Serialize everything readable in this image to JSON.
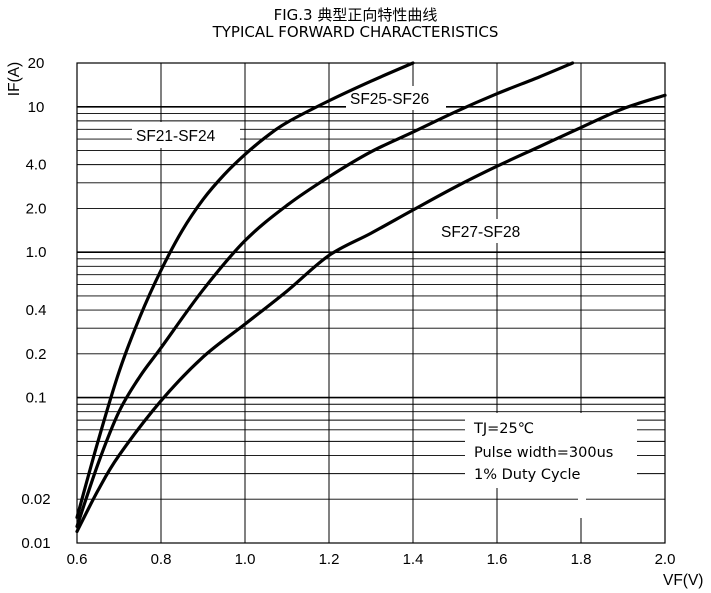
{
  "chart_data": {
    "type": "line",
    "title": "FIG.3  典型正向特性曲线",
    "subtitle": "TYPICAL FORWARD CHARACTERISTICS",
    "xlabel": "VF(V)",
    "ylabel": "IF(A)",
    "xlim": [
      0.6,
      2.0
    ],
    "ylim": [
      0.01,
      20
    ],
    "yscale": "log",
    "grid": true,
    "x_ticks": [
      "0.6",
      "0.8",
      "1.0",
      "1.2",
      "1.4",
      "1.6",
      "1.8",
      "2.0"
    ],
    "y_ticks": [
      {
        "value": 0.01,
        "label": "0.01"
      },
      {
        "value": 0.02,
        "label": "0.02"
      },
      {
        "value": 0.1,
        "label": "0.1"
      },
      {
        "value": 0.2,
        "label": "0.2"
      },
      {
        "value": 0.4,
        "label": "0.4"
      },
      {
        "value": 1,
        "label": "1.0"
      },
      {
        "value": 2,
        "label": "2.0"
      },
      {
        "value": 4,
        "label": "4.0"
      },
      {
        "value": 10,
        "label": "10"
      },
      {
        "value": 20,
        "label": "20"
      }
    ],
    "series": [
      {
        "name": "SF21-SF24",
        "x": [
          0.6,
          0.65,
          0.7,
          0.75,
          0.8,
          0.85,
          0.9,
          0.95,
          1.0,
          1.05,
          1.1,
          1.2,
          1.3,
          1.4
        ],
        "y": [
          0.015,
          0.05,
          0.15,
          0.36,
          0.75,
          1.4,
          2.3,
          3.4,
          4.7,
          6.2,
          7.8,
          11,
          15,
          20
        ]
      },
      {
        "name": "SF25-SF26",
        "x": [
          0.6,
          0.65,
          0.7,
          0.75,
          0.8,
          0.9,
          1.0,
          1.1,
          1.2,
          1.3,
          1.4,
          1.5,
          1.6,
          1.7,
          1.78
        ],
        "y": [
          0.013,
          0.035,
          0.08,
          0.14,
          0.22,
          0.55,
          1.2,
          2.1,
          3.3,
          4.9,
          6.7,
          9.2,
          12.3,
          16,
          20
        ]
      },
      {
        "name": "SF27-SF28",
        "x": [
          0.6,
          0.65,
          0.7,
          0.8,
          0.9,
          1.0,
          1.1,
          1.2,
          1.3,
          1.4,
          1.5,
          1.6,
          1.7,
          1.8,
          1.9,
          2.0
        ],
        "y": [
          0.012,
          0.023,
          0.04,
          0.095,
          0.19,
          0.32,
          0.54,
          0.95,
          1.35,
          1.95,
          2.8,
          3.9,
          5.3,
          7.2,
          9.7,
          12
        ]
      }
    ],
    "annotations": [
      "TJ=25℃",
      "Pulse width=300us",
      "1% Duty Cycle"
    ]
  }
}
